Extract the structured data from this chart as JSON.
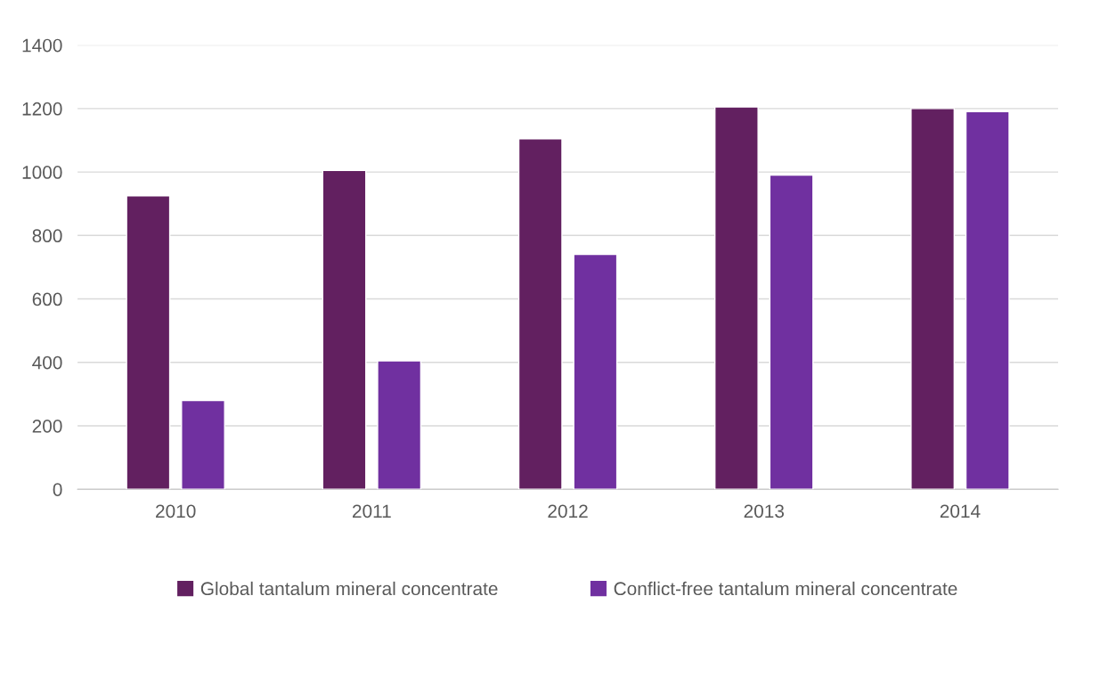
{
  "chart_data": {
    "type": "bar",
    "categories": [
      "2010",
      "2011",
      "2012",
      "2013",
      "2014"
    ],
    "series": [
      {
        "name": "Global tantalum mineral concentrate",
        "color": "#622060",
        "values": [
          925,
          1005,
          1105,
          1205,
          1200
        ]
      },
      {
        "name": "Conflict-free tantalum mineral concentrate",
        "color": "#7030a0",
        "values": [
          280,
          405,
          740,
          990,
          1190
        ]
      }
    ],
    "ylim": [
      0,
      1400
    ],
    "yticks": [
      0,
      200,
      400,
      600,
      800,
      1000,
      1200,
      1400
    ],
    "grid": "y",
    "legend": "bottom"
  }
}
